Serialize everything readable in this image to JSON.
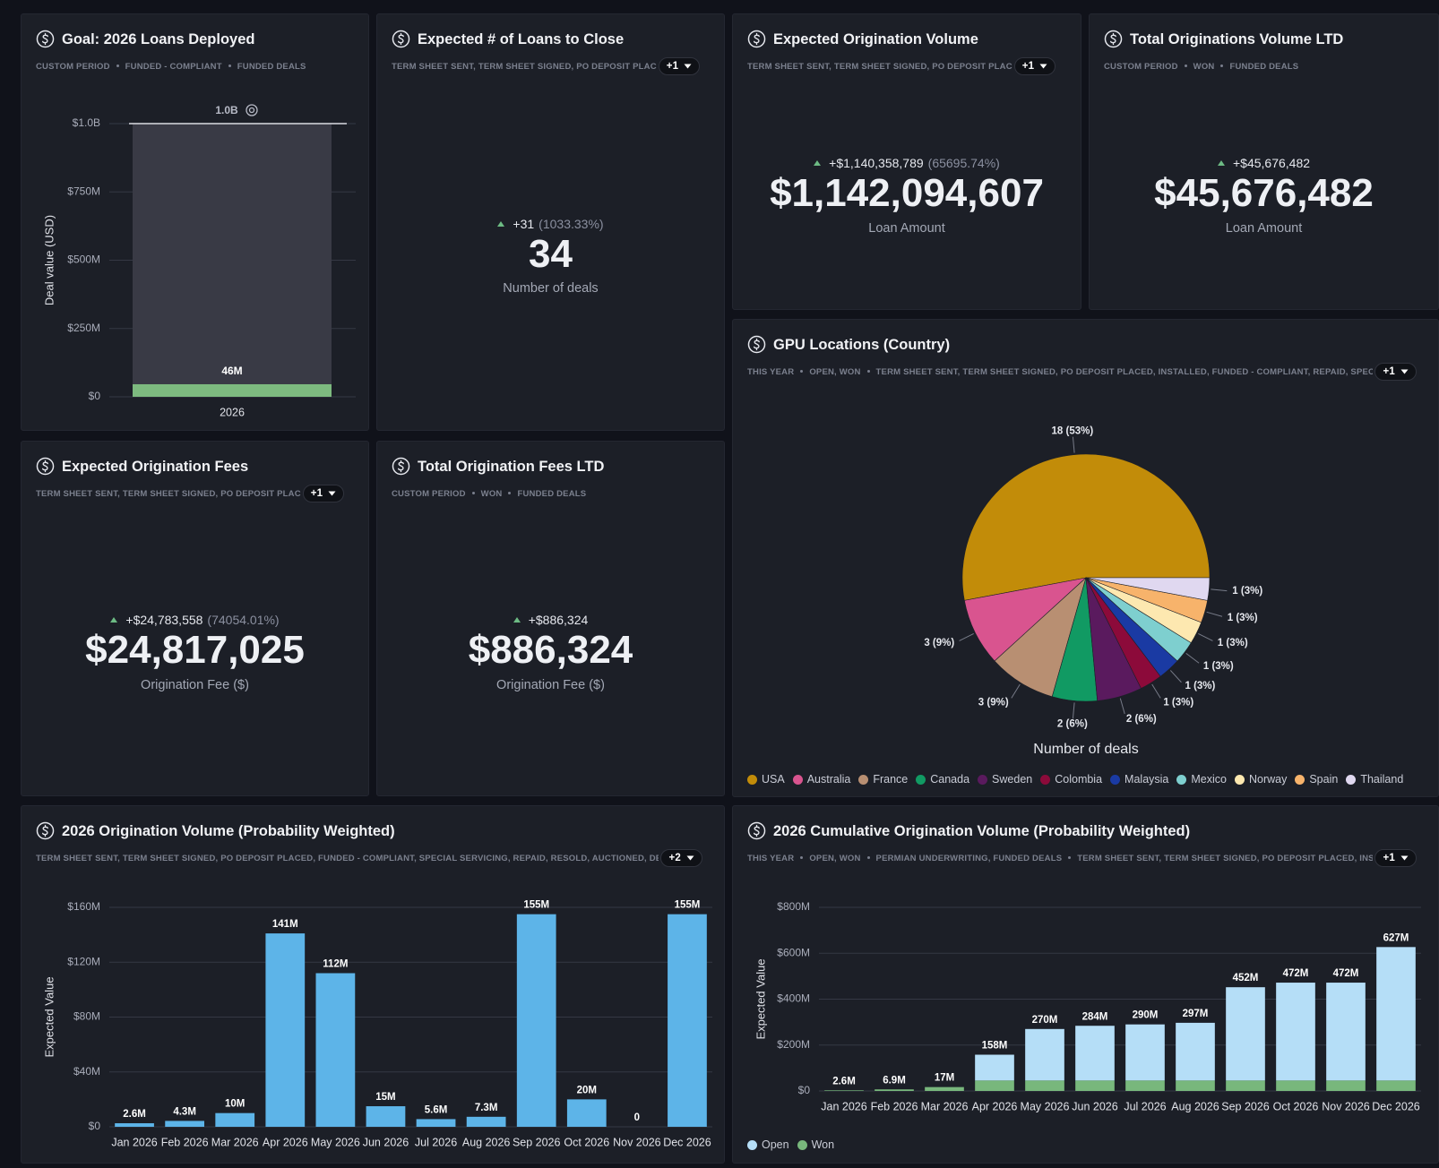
{
  "cards": [
    {
      "title": "Goal: 2026 Loans Deployed",
      "filters": [
        "CUSTOM PERIOD",
        "FUNDED - COMPLIANT",
        "FUNDED DEALS"
      ],
      "chart_data": {
        "type": "goal",
        "y_label": "Deal value (USD)",
        "categories": [
          "2026"
        ],
        "values": [
          46000000
        ],
        "value_labels": [
          "46M"
        ],
        "goal": 1000000000,
        "goal_label": "1.0B",
        "color": "#7dba7f",
        "ylim": [
          0,
          1000000000
        ],
        "yticks": [
          {
            "value": 0,
            "label": "$0"
          },
          {
            "value": 250000000,
            "label": "$250M"
          },
          {
            "value": 500000000,
            "label": "$500M"
          },
          {
            "value": 750000000,
            "label": "$750M"
          },
          {
            "value": 1000000000,
            "label": "$1.0B"
          }
        ],
        "grid": true
      }
    },
    {
      "title": "Expected # of Loans to Close",
      "filters": [
        "TERM SHEET SENT, TERM SHEET SIGNED, PO DEPOSIT PLAC"
      ],
      "badge": "+1",
      "kpi": {
        "change": "+31",
        "change_pct": "(1033.33%)",
        "value": "34",
        "label": "Number of deals"
      }
    },
    {
      "title": "Expected Origination Volume",
      "filters": [
        "TERM SHEET SENT, TERM SHEET SIGNED, PO DEPOSIT PLAC"
      ],
      "badge": "+1",
      "kpi": {
        "change": "+$1,140,358,789",
        "change_pct": "(65695.74%)",
        "value": "$1,142,094,607",
        "label": "Loan Amount"
      }
    },
    {
      "title": "Total Originations Volume LTD",
      "filters": [
        "CUSTOM PERIOD",
        "WON",
        "FUNDED DEALS"
      ],
      "kpi": {
        "change": "+$45,676,482",
        "value": "$45,676,482",
        "label": "Loan Amount"
      }
    },
    {
      "title": "GPU Locations (Country)",
      "filters": [
        "THIS YEAR",
        "OPEN, WON",
        "TERM SHEET SENT, TERM SHEET SIGNED, PO DEPOSIT PLACED, INSTALLED, FUNDED - COMPLIANT, REPAID, SPEC"
      ],
      "badge": "+1",
      "chart_data": {
        "type": "pie",
        "caption": "Number of deals",
        "categories": [
          "USA",
          "Australia",
          "France",
          "Canada",
          "Sweden",
          "Colombia",
          "Malaysia",
          "Mexico",
          "Norway",
          "Spain",
          "Thailand"
        ],
        "values": [
          18,
          3,
          3,
          2,
          2,
          1,
          1,
          1,
          1,
          1,
          1
        ],
        "value_labels": [
          "18 (53%)",
          "3 (9%)",
          "3 (9%)",
          "2 (6%)",
          "2 (6%)",
          "1 (3%)",
          "1 (3%)",
          "1 (3%)",
          "1 (3%)",
          "1 (3%)",
          "1 (3%)"
        ],
        "colors": [
          "#c28c09",
          "#d9548f",
          "#b88f72",
          "#119a63",
          "#5a1a5e",
          "#8c0a3a",
          "#1a3aa3",
          "#7ecfcf",
          "#fde8b0",
          "#f7b36b",
          "#e0d8f0"
        ]
      }
    },
    {
      "title": "Expected Origination Fees",
      "filters": [
        "TERM SHEET SENT, TERM SHEET SIGNED, PO DEPOSIT PLAC"
      ],
      "badge": "+1",
      "kpi": {
        "change": "+$24,783,558",
        "change_pct": "(74054.01%)",
        "value": "$24,817,025",
        "label": "Origination Fee ($)"
      }
    },
    {
      "title": "Total Origination Fees LTD",
      "filters": [
        "CUSTOM PERIOD",
        "WON",
        "FUNDED DEALS"
      ],
      "kpi": {
        "change": "+$886,324",
        "value": "$886,324",
        "label": "Origination Fee ($)"
      }
    },
    {
      "title": "2026 Origination Volume (Probability Weighted)",
      "filters": [
        "TERM SHEET SENT, TERM SHEET SIGNED, PO DEPOSIT PLACED, FUNDED - COMPLIANT, SPECIAL SERVICING, REPAID, RESOLD, AUCTIONED, DE"
      ],
      "badge": "+2",
      "chart_data": {
        "type": "bar",
        "y_label": "Expected Value",
        "color": "#5db4e8",
        "categories": [
          "Jan 2026",
          "Feb 2026",
          "Mar 2026",
          "Apr 2026",
          "May 2026",
          "Jun 2026",
          "Jul 2026",
          "Aug 2026",
          "Sep 2026",
          "Oct 2026",
          "Nov 2026",
          "Dec 2026"
        ],
        "values": [
          2600000,
          4300000,
          10000000,
          141000000,
          112000000,
          15000000,
          5600000,
          7300000,
          155000000,
          20000000,
          0,
          155000000
        ],
        "value_labels": [
          "2.6M",
          "4.3M",
          "10M",
          "141M",
          "112M",
          "15M",
          "5.6M",
          "7.3M",
          "155M",
          "20M",
          "0",
          "155M"
        ],
        "ylim": [
          0,
          160000000
        ],
        "yticks": [
          {
            "value": 0,
            "label": "$0"
          },
          {
            "value": 40000000,
            "label": "$40M"
          },
          {
            "value": 80000000,
            "label": "$80M"
          },
          {
            "value": 120000000,
            "label": "$120M"
          },
          {
            "value": 160000000,
            "label": "$160M"
          }
        ],
        "grid": true
      }
    },
    {
      "title": "2026 Cumulative Origination Volume (Probability Weighted)",
      "filters": [
        "THIS YEAR",
        "OPEN, WON",
        "PERMIAN UNDERWRITING, FUNDED DEALS",
        "TERM SHEET SENT, TERM SHEET SIGNED, PO DEPOSIT PLACED, INS"
      ],
      "badge": "+1",
      "chart_data": {
        "type": "bar",
        "stacked": true,
        "y_label": "Expected Value",
        "categories": [
          "Jan 2026",
          "Feb 2026",
          "Mar 2026",
          "Apr 2026",
          "May 2026",
          "Jun 2026",
          "Jul 2026",
          "Aug 2026",
          "Sep 2026",
          "Oct 2026",
          "Nov 2026",
          "Dec 2026"
        ],
        "series": [
          {
            "name": "Open",
            "color": "#b5def7",
            "values": [
              0,
              0,
              0,
              112300000,
              224300000,
              238300000,
              244300000,
              251300000,
              406300000,
              426300000,
              426300000,
              581300000
            ]
          },
          {
            "name": "Won",
            "color": "#78b77c",
            "values": [
              2600000,
              6900000,
              17000000,
              45700000,
              45700000,
              45700000,
              45700000,
              45700000,
              45700000,
              45700000,
              45700000,
              45700000
            ]
          }
        ],
        "totals": [
          2600000,
          6900000,
          17000000,
          158000000,
          270000000,
          284000000,
          290000000,
          297000000,
          452000000,
          472000000,
          472000000,
          627000000
        ],
        "total_labels": [
          "2.6M",
          "6.9M",
          "17M",
          "158M",
          "270M",
          "284M",
          "290M",
          "297M",
          "452M",
          "472M",
          "472M",
          "627M"
        ],
        "ylim": [
          0,
          800000000
        ],
        "yticks": [
          {
            "value": 0,
            "label": "$0"
          },
          {
            "value": 200000000,
            "label": "$200M"
          },
          {
            "value": 400000000,
            "label": "$400M"
          },
          {
            "value": 600000000,
            "label": "$600M"
          },
          {
            "value": 800000000,
            "label": "$800M"
          }
        ],
        "grid": true
      }
    }
  ]
}
